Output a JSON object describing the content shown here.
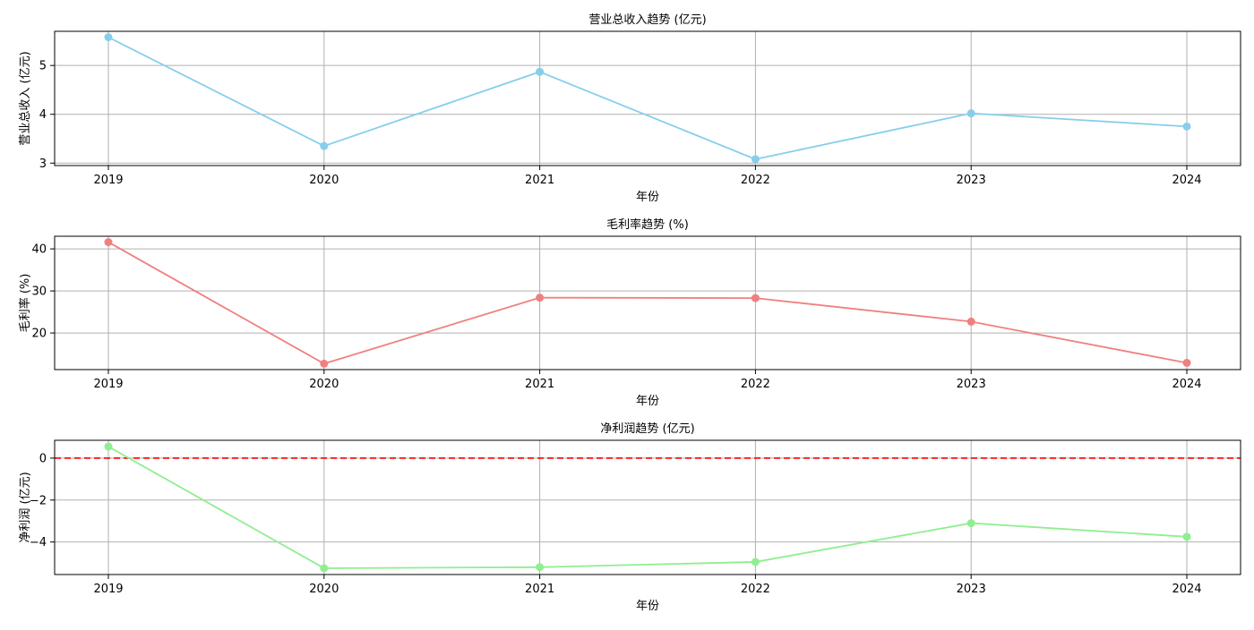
{
  "chart_data": [
    {
      "type": "line",
      "title": "营业总收入趋势 (亿元)",
      "xlabel": "年份",
      "ylabel": "营业总收入 (亿元)",
      "categories": [
        "2019",
        "2020",
        "2021",
        "2022",
        "2023",
        "2024"
      ],
      "series": [
        {
          "values": [
            5.58,
            3.35,
            4.87,
            3.08,
            4.02,
            3.75
          ],
          "color": "#87ceeb",
          "marker": "circle"
        }
      ],
      "ylim": [
        2.95,
        5.7
      ],
      "yticks": [
        3,
        4,
        5
      ],
      "grid": true
    },
    {
      "type": "line",
      "title": "毛利率趋势 (%)",
      "xlabel": "年份",
      "ylabel": "毛利率 (%)",
      "categories": [
        "2019",
        "2020",
        "2021",
        "2022",
        "2023",
        "2024"
      ],
      "series": [
        {
          "values": [
            41.6,
            12.7,
            28.4,
            28.3,
            22.7,
            12.9
          ],
          "color": "#f08080",
          "marker": "circle"
        }
      ],
      "ylim": [
        11.3,
        43.0
      ],
      "yticks": [
        20,
        30,
        40
      ],
      "grid": true
    },
    {
      "type": "line",
      "title": "净利润趋势 (亿元)",
      "xlabel": "年份",
      "ylabel": "净利润 (亿元)",
      "categories": [
        "2019",
        "2020",
        "2021",
        "2022",
        "2023",
        "2024"
      ],
      "series": [
        {
          "values": [
            0.55,
            -5.25,
            -5.2,
            -4.95,
            -3.1,
            -3.75
          ],
          "color": "#90ee90",
          "marker": "circle"
        }
      ],
      "ylim": [
        -5.55,
        0.85
      ],
      "yticks": [
        0,
        -2,
        -4
      ],
      "reference_line": {
        "y": 0,
        "color": "#ff0000",
        "style": "dashed"
      },
      "grid": true
    }
  ]
}
